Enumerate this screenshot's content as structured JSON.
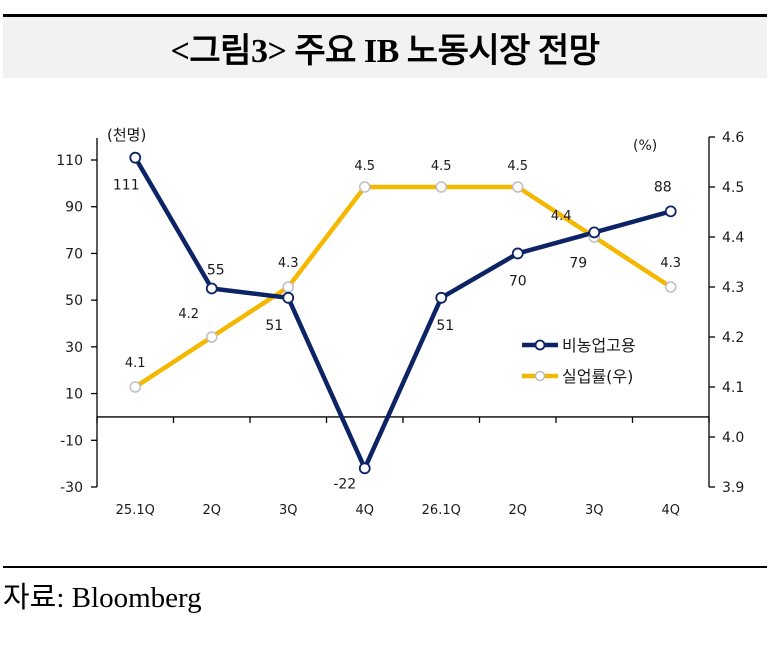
{
  "title": "<그림3> 주요 IB 노동시장 전망",
  "source": "자료: Bloomberg",
  "colors": {
    "employment": "#0c2366",
    "unemployment": "#f5b800",
    "marker_fill": "#ffffff",
    "unemployment_marker_stroke": "#bfbfbf",
    "axis": "#000000"
  },
  "chart_data": {
    "type": "line",
    "title": "주요 IB 노동시장 전망",
    "categories": [
      "25.1Q",
      "2Q",
      "3Q",
      "4Q",
      "26.1Q",
      "2Q",
      "3Q",
      "4Q"
    ],
    "y_left": {
      "unit_label": "(천명)",
      "range": [
        -30,
        110
      ],
      "ticks": [
        110,
        90,
        70,
        50,
        30,
        10,
        -10,
        -30
      ]
    },
    "y_right": {
      "unit_label": "(%)",
      "range": [
        3.9,
        4.6
      ],
      "ticks": [
        "4.6",
        "4.5",
        "4.4",
        "4.3",
        "4.2",
        "4.1",
        "4.0",
        "3.9"
      ]
    },
    "series": [
      {
        "name": "비농업고용",
        "axis": "left",
        "values": [
          111,
          55,
          51,
          -22,
          51,
          70,
          79,
          88
        ],
        "labels": [
          "111",
          "55",
          "51",
          "-22",
          "51",
          "70",
          "79",
          "88"
        ]
      },
      {
        "name": "실업률(우)",
        "axis": "right",
        "values": [
          4.1,
          4.2,
          4.3,
          4.5,
          4.5,
          4.5,
          4.4,
          4.3
        ],
        "labels": [
          "4.1",
          "4.2",
          "4.3",
          "4.5",
          "4.5",
          "4.5",
          "4.4",
          "4.3"
        ]
      }
    ],
    "legend": {
      "placement": "center-right",
      "entries": [
        "비농업고용",
        "실업률(우)"
      ]
    },
    "grid": false
  }
}
